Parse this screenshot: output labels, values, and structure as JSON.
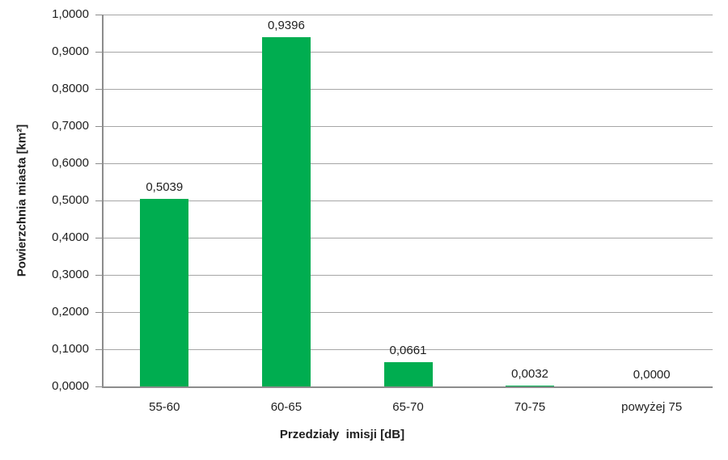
{
  "chart_data": {
    "type": "bar",
    "categories": [
      "55-60",
      "60-65",
      "65-70",
      "70-75",
      "powyżej 75"
    ],
    "values": [
      0.5039,
      0.9396,
      0.0661,
      0.0032,
      0.0
    ],
    "value_labels": [
      "0,5039",
      "0,9396",
      "0,0661",
      "0,0032",
      "0,0000"
    ],
    "title": "",
    "xlabel": "Przedziały  imisji [dB]",
    "ylabel": "Powierzchnia miasta [km²]",
    "ylim": [
      0,
      1.0
    ],
    "ytick_step": 0.1,
    "ytick_labels": [
      "0,0000",
      "0,1000",
      "0,2000",
      "0,3000",
      "0,4000",
      "0,5000",
      "0,6000",
      "0,7000",
      "0,8000",
      "0,9000",
      "1,0000"
    ],
    "grid": true,
    "legend": "none",
    "bar_color": "#00AD50",
    "grid_color": "#A6A6A6",
    "axis_color": "#8C8C8C",
    "text_color": "#1f1f1f"
  }
}
